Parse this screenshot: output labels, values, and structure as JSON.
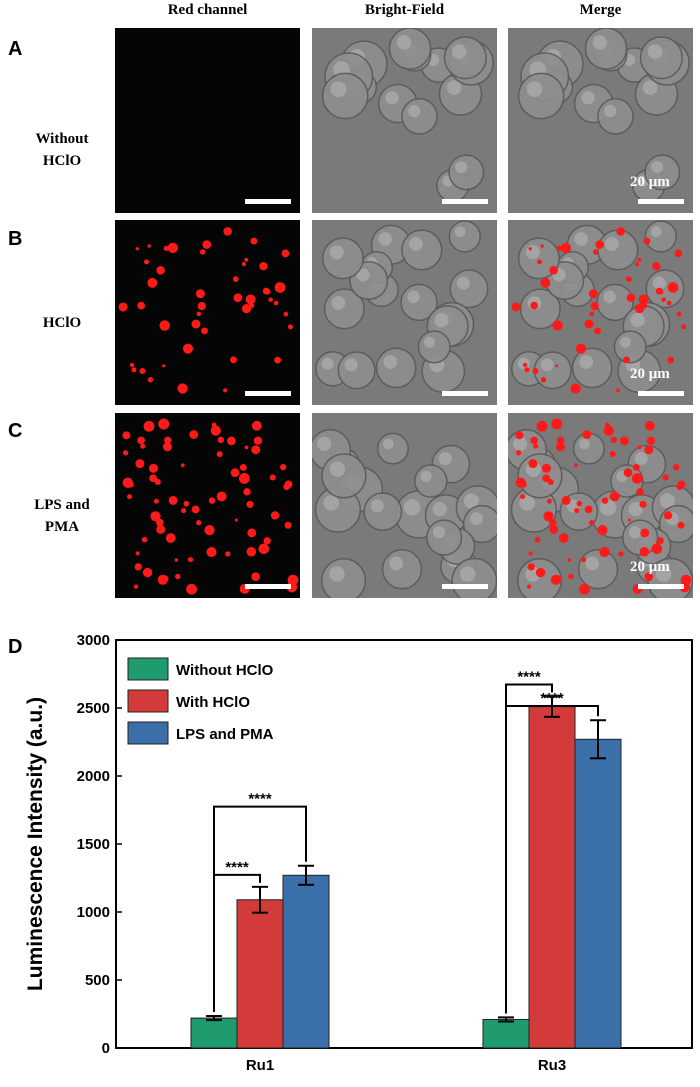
{
  "figure": {
    "column_titles": [
      "Red channel",
      "Bright-Field",
      "Merge"
    ],
    "rows": [
      {
        "letter": "A",
        "label_lines": [
          "Without",
          "HClO"
        ],
        "condition": "none"
      },
      {
        "letter": "B",
        "label_lines": [
          "HClO"
        ],
        "condition": "hclo"
      },
      {
        "letter": "C",
        "label_lines": [
          "LPS and",
          "PMA"
        ],
        "condition": "lps"
      }
    ],
    "scale_text": "20 μm",
    "chart_letter": "D",
    "colors": {
      "green": "#1f9b6e",
      "red": "#d33a3a",
      "blue": "#3a6faa",
      "fluor": "#ff1a1a"
    }
  },
  "chart_data": {
    "type": "bar",
    "categories": [
      "Ru1",
      "Ru3"
    ],
    "series": [
      {
        "name": "Without HClO",
        "values": [
          220,
          210
        ],
        "errors": [
          15,
          15
        ],
        "color": "#1f9b6e"
      },
      {
        "name": "With HClO",
        "values": [
          1090,
          2510
        ],
        "errors": [
          95,
          75
        ],
        "color": "#d33a3a"
      },
      {
        "name": "LPS and PMA",
        "values": [
          1270,
          2270
        ],
        "errors": [
          70,
          140
        ],
        "color": "#3a6faa"
      }
    ],
    "ylabel": "Luminescence Intensity (a.u.)",
    "xlabel": "",
    "ylim": [
      0,
      3000
    ],
    "yticks": [
      0,
      500,
      1000,
      1500,
      2000,
      2500,
      3000
    ],
    "significance": [
      {
        "category": 0,
        "from": 0,
        "to": 1,
        "label": "****"
      },
      {
        "category": 0,
        "from": 0,
        "to": 2,
        "label": "****"
      },
      {
        "category": 1,
        "from": 0,
        "to": 1,
        "label": "****"
      },
      {
        "category": 1,
        "from": 0,
        "to": 2,
        "label": "****"
      }
    ],
    "legend_position": "top-left"
  }
}
